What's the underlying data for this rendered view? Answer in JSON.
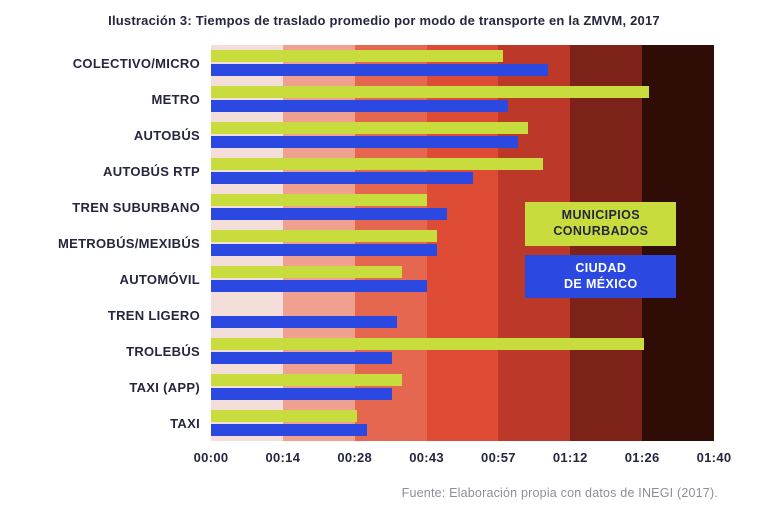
{
  "title": "Ilustración 3: Tiempos de traslado promedio por modo de transporte en la ZMVM, 2017",
  "footer": "Fuente: Elaboración propia con datos de INEGI (2017).",
  "colors": {
    "municipios_conurbados": "#c9dc3e",
    "ciudad_de_mexico": "#2b49e0",
    "title_text": "#26263e",
    "footer_text": "#8d8d9c"
  },
  "chart_data": {
    "type": "bar",
    "orientation": "horizontal",
    "title": "Ilustración 3: Tiempos de traslado promedio por modo de transporte en la ZMVM, 2017",
    "xlabel": "",
    "ylabel": "",
    "x_ticks": [
      "00:00",
      "00:14",
      "00:28",
      "00:43",
      "00:57",
      "01:12",
      "01:26",
      "01:40"
    ],
    "x_max_minutes": 100,
    "grid": false,
    "legend_position": "inside-right",
    "categories": [
      "COLECTIVO/MICRO",
      "METRO",
      "AUTOBÚS",
      "AUTOBÚS RTP",
      "TREN SUBURBANO",
      "METROBÚS/MEXIBÚS",
      "AUTOMÓVIL",
      "TREN LIGERO",
      "TROLEBÚS",
      "TAXI (APP)",
      "TAXI"
    ],
    "series": [
      {
        "name": "MUNICIPIOS CONURBADOS",
        "key": "municipios-conurbados",
        "color": "#c9dc3e",
        "values_minutes": [
          58,
          87,
          63,
          66,
          43,
          45,
          38,
          0,
          86,
          38,
          29
        ]
      },
      {
        "name": "CIUDAD DE MÉXICO",
        "key": "ciudad-de-mexico",
        "color": "#2b49e0",
        "values_minutes": [
          67,
          59,
          61,
          52,
          47,
          45,
          43,
          37,
          36,
          36,
          31
        ]
      }
    ],
    "background_bands": [
      "#f4ded9",
      "#efa08f",
      "#e56750",
      "#de4c36",
      "#bc3929",
      "#7c2218",
      "#300c07"
    ],
    "legend": [
      {
        "lines": [
          "MUNICIPIOS",
          "CONURBADOS"
        ],
        "color": "#c9dc3e",
        "text_color": "#26263e"
      },
      {
        "lines": [
          "CIUDAD",
          "DE MÉXICO"
        ],
        "color": "#2b49e0",
        "text_color": "#ffffff"
      }
    ]
  }
}
